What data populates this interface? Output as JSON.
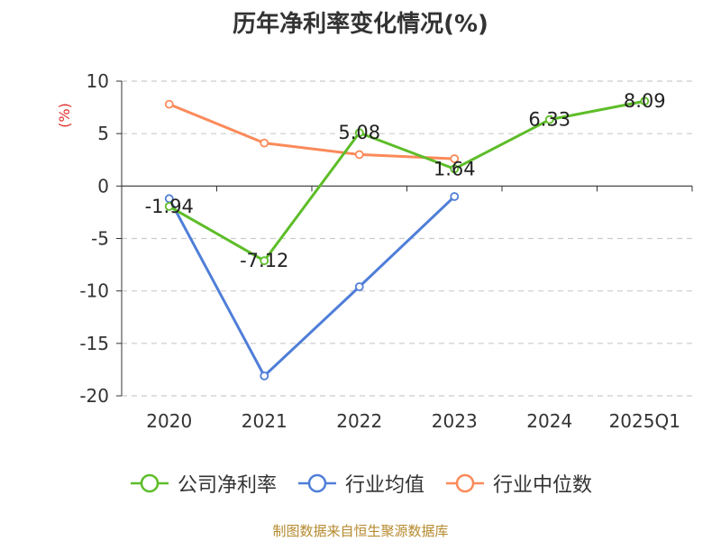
{
  "title": "历年净利率变化情况(%)",
  "source_text": "制图数据来自恒生聚源数据库",
  "colors": {
    "company": "#5dbd28",
    "industry_avg": "#4f7ed8",
    "industry_median": "#fb8a5a",
    "ylabel": "#e0302a",
    "grid": "#cccccc",
    "axis": "#333333",
    "source": "#b58a2e"
  },
  "chart_data": {
    "type": "line",
    "title": "历年净利率变化情况(%)",
    "ylabel": "(%)",
    "xlabel": "",
    "categories": [
      "2020",
      "2021",
      "2022",
      "2023",
      "2024",
      "2025Q1"
    ],
    "ylim": [
      -20,
      10
    ],
    "yticks": [
      10,
      5,
      0,
      -5,
      -10,
      -15,
      -20
    ],
    "grid": true,
    "legend_position": "bottom",
    "series": [
      {
        "name": "公司净利率",
        "key": "company",
        "values": [
          -1.94,
          -7.12,
          5.08,
          1.64,
          6.33,
          8.09
        ],
        "labels": [
          "-1.94",
          "-7.12",
          "5.08",
          "1.64",
          "6.33",
          "8.09"
        ]
      },
      {
        "name": "行业均值",
        "key": "industry_avg",
        "values": [
          -1.2,
          -18.1,
          -9.6,
          -1.0,
          null,
          null
        ]
      },
      {
        "name": "行业中位数",
        "key": "industry_median",
        "values": [
          7.8,
          4.1,
          3.0,
          2.6,
          null,
          null
        ]
      }
    ]
  }
}
